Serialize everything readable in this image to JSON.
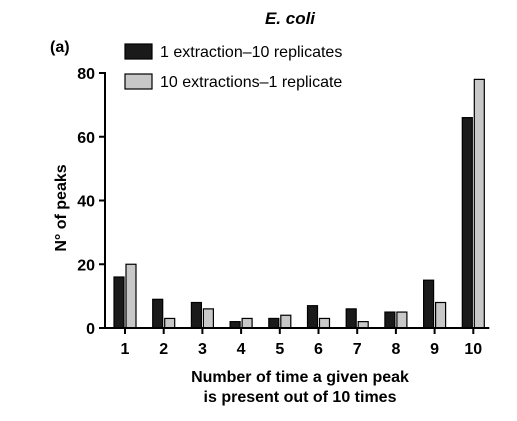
{
  "chart_data": {
    "type": "bar",
    "title": "E. coli",
    "panel_label": "(a)",
    "categories": [
      "1",
      "2",
      "3",
      "4",
      "5",
      "6",
      "7",
      "8",
      "9",
      "10"
    ],
    "series": [
      {
        "name": "1 extraction–10 replicates",
        "color": "#1a1a1a",
        "values": [
          16,
          9,
          8,
          2,
          3,
          7,
          6,
          5,
          15,
          66
        ]
      },
      {
        "name": "10 extractions–1 replicate",
        "color": "#c8c8c8",
        "values": [
          20,
          3,
          6,
          3,
          4,
          3,
          2,
          5,
          8,
          78
        ]
      }
    ],
    "ylabel": "N° of peaks",
    "xlabel_line1": "Number of time a given peak",
    "xlabel_line2": "is present out of 10 times",
    "ylim": [
      0,
      80
    ],
    "yticks": [
      "0",
      "20",
      "40",
      "60",
      "80"
    ],
    "legend_placement": "top-left",
    "grid": false
  }
}
